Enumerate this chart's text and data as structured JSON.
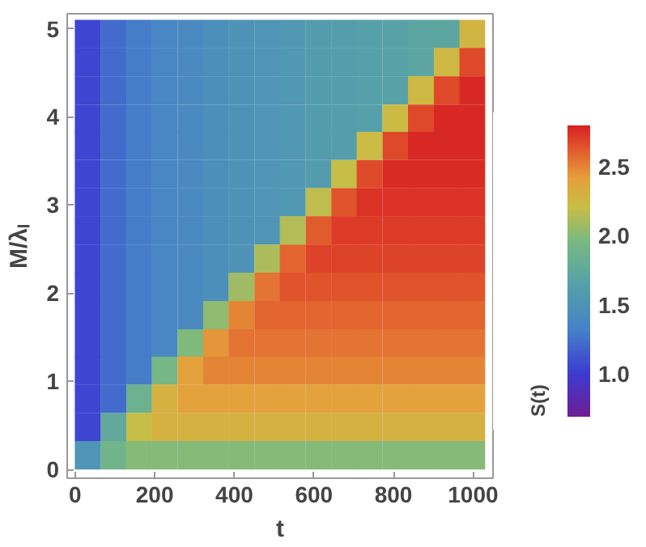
{
  "chart_data": {
    "type": "heatmap",
    "xlabel": "t",
    "ylabel": "M/λₗ",
    "clabel": "S(t)",
    "x": [
      32,
      97,
      161,
      225,
      290,
      354,
      418,
      483,
      547,
      612,
      676,
      740,
      805,
      869,
      934,
      998
    ],
    "y": [
      4.94,
      4.62,
      4.3,
      3.98,
      3.67,
      3.35,
      3.03,
      2.71,
      2.39,
      2.07,
      1.75,
      1.43,
      1.12,
      0.8,
      0.48,
      0.16
    ],
    "cells": [
      [
        1.05,
        1.22,
        1.3,
        1.36,
        1.41,
        1.46,
        1.5,
        1.53,
        1.56,
        1.6,
        1.62,
        1.65,
        1.67,
        1.7,
        1.72,
        2.27
      ],
      [
        1.05,
        1.22,
        1.3,
        1.36,
        1.41,
        1.46,
        1.5,
        1.53,
        1.56,
        1.6,
        1.62,
        1.65,
        1.67,
        1.7,
        2.25,
        2.68
      ],
      [
        1.05,
        1.22,
        1.3,
        1.36,
        1.41,
        1.46,
        1.5,
        1.53,
        1.56,
        1.6,
        1.62,
        1.65,
        1.67,
        2.24,
        2.68,
        2.78
      ],
      [
        1.05,
        1.22,
        1.3,
        1.36,
        1.41,
        1.46,
        1.5,
        1.53,
        1.56,
        1.6,
        1.62,
        1.65,
        2.23,
        2.68,
        2.78,
        2.78
      ],
      [
        1.05,
        1.22,
        1.3,
        1.36,
        1.41,
        1.46,
        1.5,
        1.53,
        1.56,
        1.6,
        1.62,
        2.22,
        2.68,
        2.78,
        2.78,
        2.78
      ],
      [
        1.05,
        1.22,
        1.3,
        1.36,
        1.41,
        1.46,
        1.5,
        1.53,
        1.56,
        1.6,
        2.2,
        2.67,
        2.77,
        2.77,
        2.77,
        2.77
      ],
      [
        1.05,
        1.22,
        1.3,
        1.36,
        1.41,
        1.46,
        1.5,
        1.53,
        1.56,
        2.18,
        2.65,
        2.75,
        2.75,
        2.75,
        2.75,
        2.75
      ],
      [
        1.05,
        1.22,
        1.3,
        1.36,
        1.41,
        1.46,
        1.5,
        1.53,
        2.14,
        2.62,
        2.72,
        2.72,
        2.72,
        2.72,
        2.72,
        2.72
      ],
      [
        1.05,
        1.22,
        1.3,
        1.36,
        1.41,
        1.46,
        1.5,
        2.12,
        2.6,
        2.7,
        2.7,
        2.7,
        2.7,
        2.7,
        2.7,
        2.7
      ],
      [
        1.05,
        1.22,
        1.3,
        1.36,
        1.41,
        1.46,
        2.08,
        2.55,
        2.65,
        2.65,
        2.65,
        2.65,
        2.65,
        2.65,
        2.65,
        2.65
      ],
      [
        1.05,
        1.22,
        1.3,
        1.36,
        1.41,
        2.03,
        2.5,
        2.6,
        2.6,
        2.6,
        2.6,
        2.6,
        2.6,
        2.6,
        2.6,
        2.6
      ],
      [
        1.05,
        1.22,
        1.3,
        1.36,
        1.98,
        2.45,
        2.55,
        2.55,
        2.55,
        2.55,
        2.55,
        2.55,
        2.55,
        2.55,
        2.55,
        2.55
      ],
      [
        1.05,
        1.22,
        1.3,
        1.93,
        2.4,
        2.5,
        2.5,
        2.5,
        2.5,
        2.5,
        2.5,
        2.5,
        2.5,
        2.5,
        2.5,
        2.5
      ],
      [
        1.05,
        1.22,
        1.85,
        2.3,
        2.4,
        2.4,
        2.4,
        2.4,
        2.4,
        2.4,
        2.4,
        2.4,
        2.4,
        2.4,
        2.4,
        2.4
      ],
      [
        1.05,
        1.76,
        2.2,
        2.3,
        2.3,
        2.3,
        2.3,
        2.3,
        2.3,
        2.3,
        2.3,
        2.3,
        2.3,
        2.3,
        2.3,
        2.3
      ],
      [
        1.53,
        1.9,
        2.0,
        2.0,
        2.0,
        2.0,
        2.0,
        2.0,
        2.0,
        2.0,
        2.0,
        2.0,
        2.0,
        2.0,
        2.0,
        2.0
      ]
    ],
    "xlim": [
      -20,
      1050
    ],
    "xticks": [
      0,
      200,
      400,
      600,
      800,
      1000
    ],
    "ylim": [
      -0.1,
      5.17
    ],
    "yticks": [
      0,
      1,
      2,
      3,
      4,
      5
    ],
    "clim": [
      0.69,
      2.8
    ],
    "cticks": [
      {
        "value": 1.0,
        "label": "1.0"
      },
      {
        "value": 1.5,
        "label": "1.5"
      },
      {
        "value": 2.0,
        "label": "2.0"
      },
      {
        "value": 2.5,
        "label": "2.5"
      }
    ]
  }
}
